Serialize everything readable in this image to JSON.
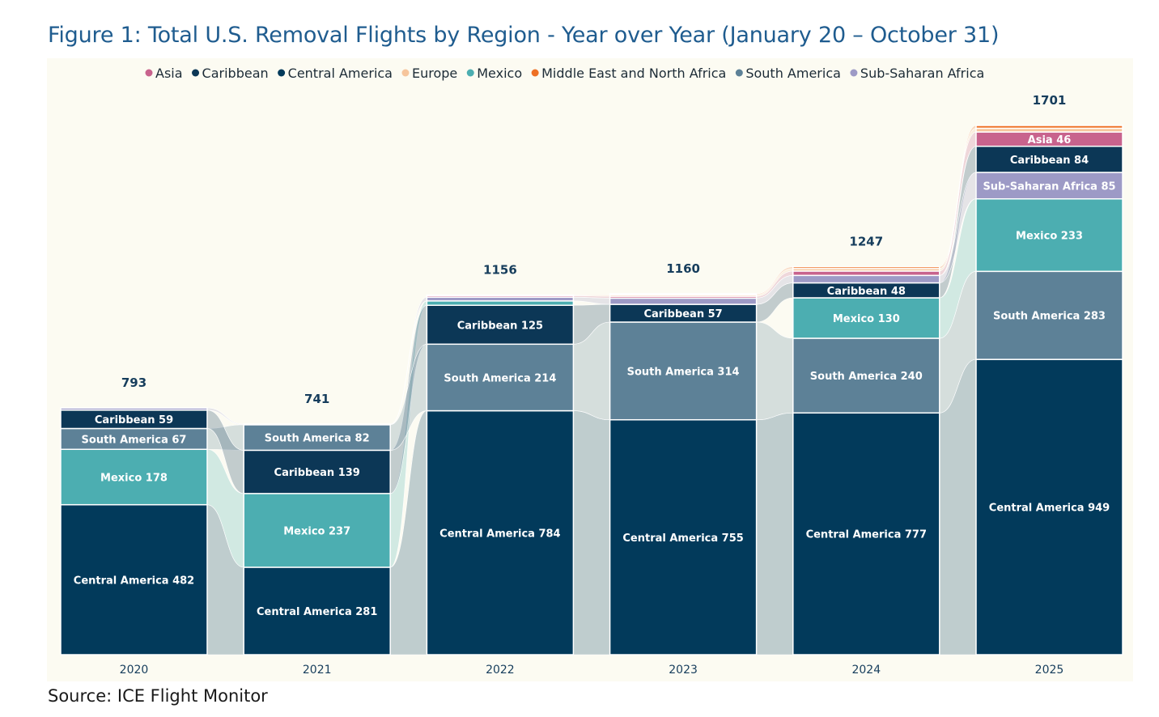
{
  "title": "Figure 1: Total U.S. Removal Flights by Region - Year over Year (January 20 – October 31)",
  "source": "Source: ICE Flight Monitor",
  "colors": {
    "Asia": "#c8638d",
    "Caribbean": "#0c3756",
    "Central America": "#023a5b",
    "Europe": "#f6c59c",
    "Mexico": "#4caeb1",
    "Middle East and North Africa": "#ee7024",
    "South America": "#5d8197",
    "Sub-Saharan Africa": "#9d9ac6"
  },
  "chart_data": {
    "type": "bar",
    "subtype": "stacked-bar-with-flows",
    "title": "Figure 1: Total U.S. Removal Flights by Region - Year over Year (January 20 – October 31)",
    "legend": [
      "Asia",
      "Caribbean",
      "Central America",
      "Europe",
      "Mexico",
      "Middle East and North Africa",
      "South America",
      "Sub-Saharan Africa"
    ],
    "legend_position": "top",
    "categories": [
      "2020",
      "2021",
      "2022",
      "2023",
      "2024",
      "2025"
    ],
    "totals": [
      793,
      741,
      1156,
      1160,
      1247,
      1701
    ],
    "ylim": [
      0,
      1701
    ],
    "stacks": [
      [
        {
          "region": "Central America",
          "value": 482,
          "label": "Central America 482"
        },
        {
          "region": "Mexico",
          "value": 178,
          "label": "Mexico 178"
        },
        {
          "region": "South America",
          "value": 67,
          "label": "South America 67"
        },
        {
          "region": "Caribbean",
          "value": 59,
          "label": "Caribbean 59"
        },
        {
          "region": "Sub-Saharan Africa",
          "value": 7,
          "label": ""
        }
      ],
      [
        {
          "region": "Central America",
          "value": 281,
          "label": "Central America 281"
        },
        {
          "region": "Mexico",
          "value": 237,
          "label": "Mexico 237"
        },
        {
          "region": "Caribbean",
          "value": 139,
          "label": "Caribbean 139"
        },
        {
          "region": "South America",
          "value": 82,
          "label": "South America 82"
        },
        {
          "region": "Sub-Saharan Africa",
          "value": 2,
          "label": ""
        }
      ],
      [
        {
          "region": "Central America",
          "value": 784,
          "label": "Central America 784"
        },
        {
          "region": "South America",
          "value": 214,
          "label": "South America 214"
        },
        {
          "region": "Caribbean",
          "value": 125,
          "label": "Caribbean 125"
        },
        {
          "region": "Mexico",
          "value": 14,
          "label": ""
        },
        {
          "region": "Sub-Saharan Africa",
          "value": 12,
          "label": ""
        },
        {
          "region": "Asia",
          "value": 5,
          "label": ""
        },
        {
          "region": "Europe",
          "value": 2,
          "label": ""
        }
      ],
      [
        {
          "region": "Central America",
          "value": 755,
          "label": "Central America 755"
        },
        {
          "region": "South America",
          "value": 314,
          "label": "South America 314"
        },
        {
          "region": "Caribbean",
          "value": 57,
          "label": "Caribbean 57"
        },
        {
          "region": "Sub-Saharan Africa",
          "value": 20,
          "label": ""
        },
        {
          "region": "Asia",
          "value": 6,
          "label": ""
        },
        {
          "region": "Europe",
          "value": 5,
          "label": ""
        },
        {
          "region": "Middle East and North Africa",
          "value": 3,
          "label": ""
        }
      ],
      [
        {
          "region": "Central America",
          "value": 777,
          "label": "Central America 777"
        },
        {
          "region": "South America",
          "value": 240,
          "label": "South America 240"
        },
        {
          "region": "Mexico",
          "value": 130,
          "label": "Mexico 130"
        },
        {
          "region": "Caribbean",
          "value": 48,
          "label": "Caribbean 48"
        },
        {
          "region": "Sub-Saharan Africa",
          "value": 24,
          "label": ""
        },
        {
          "region": "Asia",
          "value": 14,
          "label": ""
        },
        {
          "region": "Europe",
          "value": 8,
          "label": ""
        },
        {
          "region": "Middle East and North Africa",
          "value": 6,
          "label": ""
        }
      ],
      [
        {
          "region": "Central America",
          "value": 949,
          "label": "Central America 949"
        },
        {
          "region": "South America",
          "value": 283,
          "label": "South America 283"
        },
        {
          "region": "Mexico",
          "value": 233,
          "label": "Mexico 233"
        },
        {
          "region": "Sub-Saharan Africa",
          "value": 85,
          "label": "Sub-Saharan Africa 85"
        },
        {
          "region": "Caribbean",
          "value": 84,
          "label": "Caribbean 84"
        },
        {
          "region": "Asia",
          "value": 46,
          "label": "Asia 46"
        },
        {
          "region": "Europe",
          "value": 12,
          "label": ""
        },
        {
          "region": "Middle East and North Africa",
          "value": 9,
          "label": ""
        }
      ]
    ]
  }
}
